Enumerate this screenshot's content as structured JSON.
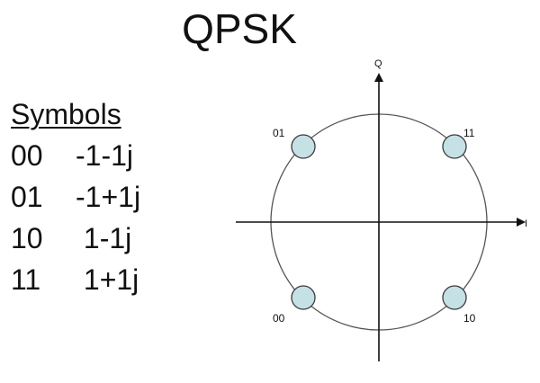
{
  "title": "QPSK",
  "symbols": {
    "heading": "Symbols",
    "rows": [
      {
        "bits": "00",
        "value": "-1-1j"
      },
      {
        "bits": "01",
        "value": "-1+1j"
      },
      {
        "bits": "10",
        "value": " 1-1j"
      },
      {
        "bits": "11",
        "value": " 1+1j"
      }
    ]
  },
  "constellation": {
    "axis_i_label": "I",
    "axis_q_label": "Q",
    "point_color": "#c5e1e6",
    "point_stroke": "#3a3a3a",
    "circle_color": "#555555",
    "points": [
      {
        "label": "01",
        "i": -1,
        "q": 1
      },
      {
        "label": "11",
        "i": 1,
        "q": 1
      },
      {
        "label": "00",
        "i": -1,
        "q": -1
      },
      {
        "label": "10",
        "i": 1,
        "q": -1
      }
    ]
  }
}
